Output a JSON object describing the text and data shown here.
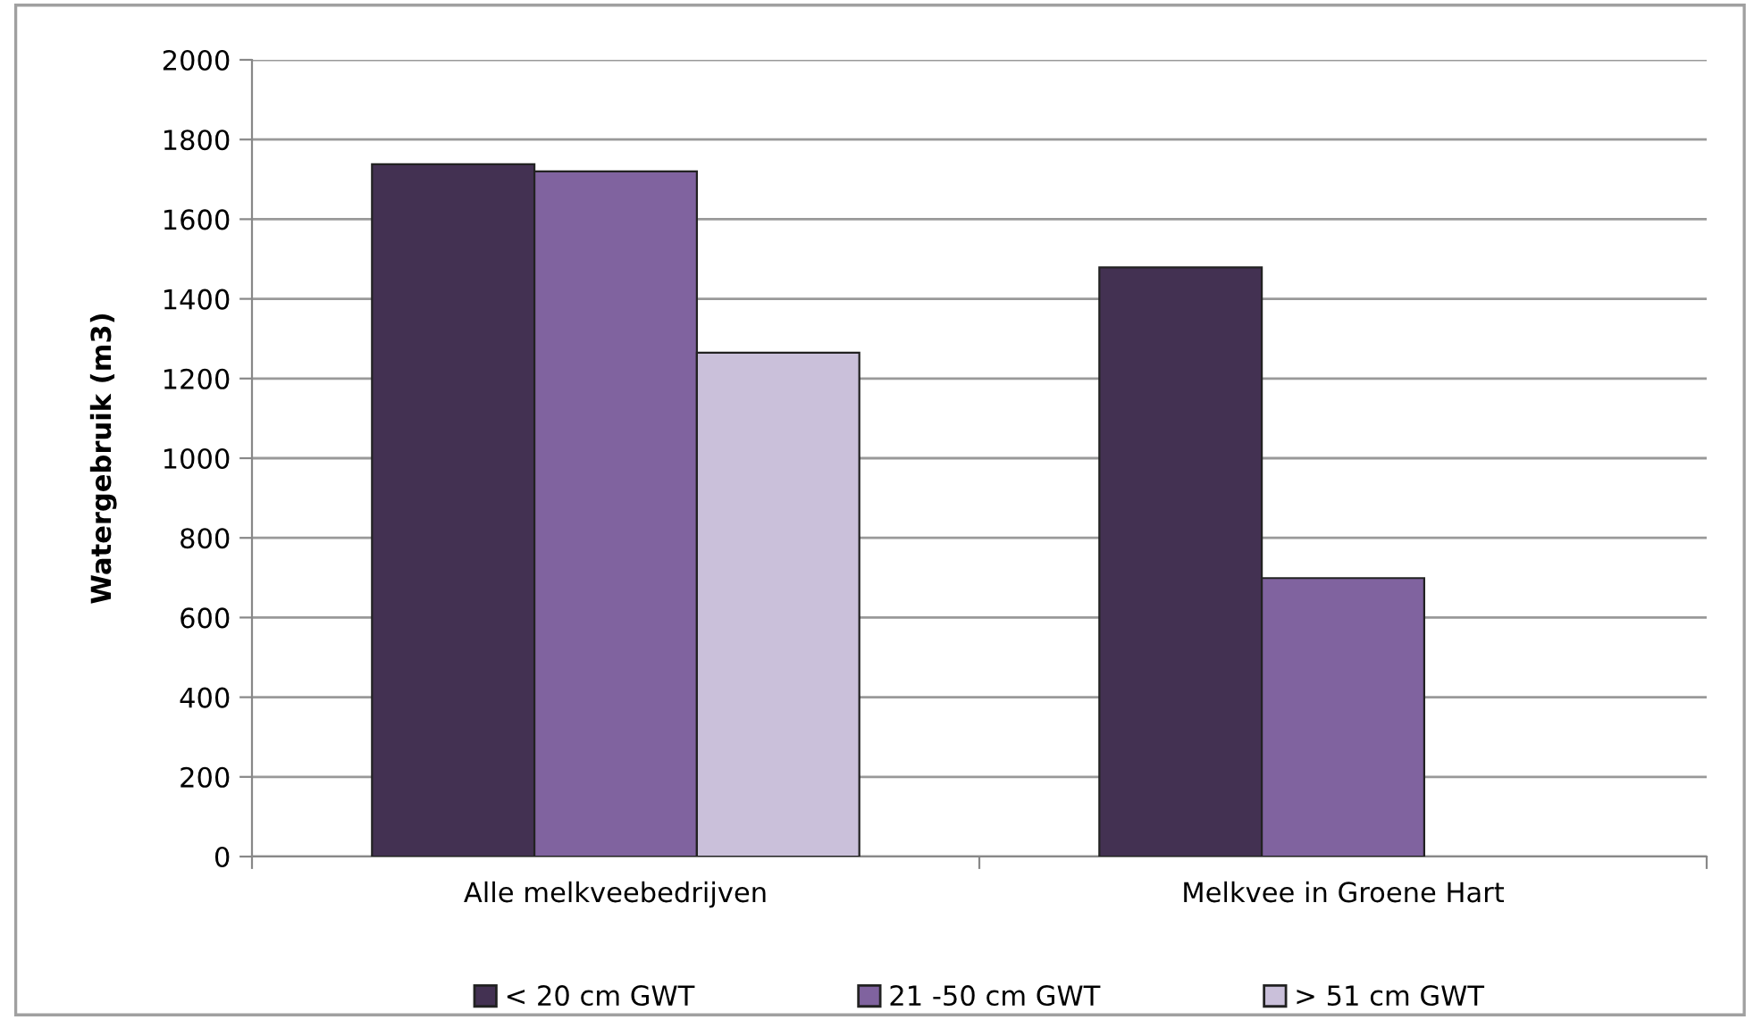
{
  "chart_data": {
    "type": "bar",
    "ylabel": "Watergebruik (m3)",
    "categories": [
      "Alle melkveebedrijven",
      "Melkvee in Groene Hart"
    ],
    "series": [
      {
        "name": "< 20 cm GWT",
        "color": "#433152",
        "values": [
          1738,
          1479
        ]
      },
      {
        "name": "21 -50 cm GWT",
        "color": "#80639f",
        "values": [
          1720,
          699
        ]
      },
      {
        "name": "> 51 cm GWT",
        "color": "#cac0da",
        "values": [
          1265,
          null
        ]
      }
    ],
    "ylim": [
      0,
      2000
    ],
    "yticks": [
      0,
      200,
      400,
      600,
      800,
      1000,
      1200,
      1400,
      1600,
      1800,
      2000
    ],
    "grid": "y",
    "legend": "bottom"
  }
}
